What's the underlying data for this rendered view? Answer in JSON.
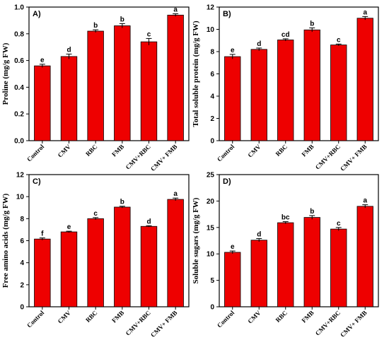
{
  "chart_data": [
    {
      "type": "bar",
      "panel_label": "A)",
      "ylabel": "Proline (mg/g FW)",
      "categories": [
        "Control",
        "CMV",
        "RBC",
        "FMB",
        "CMV+RBC",
        "CMV+ FMB"
      ],
      "values": [
        0.56,
        0.63,
        0.82,
        0.86,
        0.74,
        0.94
      ],
      "errors": [
        0.012,
        0.018,
        0.01,
        0.016,
        0.025,
        0.01
      ],
      "significance": [
        "e",
        "d",
        "b",
        "b",
        "c",
        "a"
      ],
      "ylim": [
        0.0,
        1.0
      ],
      "yticks": [
        "0.0",
        "0.2",
        "0.4",
        "0.6",
        "0.8",
        "1.0"
      ],
      "bar_color": "#ee0000"
    },
    {
      "type": "bar",
      "panel_label": "B)",
      "ylabel": "Total soluble protein (mg/g FW)",
      "categories": [
        "Control",
        "CMV",
        "RBC",
        "FMB",
        "CMV+RBC",
        "CMV+ FMB"
      ],
      "values": [
        7.55,
        8.2,
        9.05,
        9.95,
        8.6,
        11.0
      ],
      "errors": [
        0.2,
        0.12,
        0.1,
        0.18,
        0.08,
        0.15
      ],
      "significance": [
        "e",
        "d",
        "cd",
        "b",
        "c",
        "a"
      ],
      "ylim": [
        0,
        12
      ],
      "yticks": [
        "0",
        "2",
        "4",
        "6",
        "8",
        "10",
        "12"
      ],
      "bar_color": "#ee0000"
    },
    {
      "type": "bar",
      "panel_label": "C)",
      "ylabel": "Free amino acids (mg/g FW)",
      "categories": [
        "Control",
        "CMV",
        "RBC",
        "FMB",
        "CMV+RBC",
        "CMV+ FMB"
      ],
      "values": [
        6.15,
        6.8,
        8.0,
        9.05,
        7.3,
        9.75
      ],
      "errors": [
        0.1,
        0.06,
        0.1,
        0.08,
        0.06,
        0.12
      ],
      "significance": [
        "f",
        "e",
        "c",
        "b",
        "d",
        "a"
      ],
      "ylim": [
        0,
        12
      ],
      "yticks": [
        "0",
        "2",
        "4",
        "6",
        "8",
        "10",
        "12"
      ],
      "bar_color": "#ee0000"
    },
    {
      "type": "bar",
      "panel_label": "D)",
      "ylabel": "Soluble sugars (mg/g FW)",
      "categories": [
        "Control",
        "CMV",
        "RBC",
        "FMB",
        "CMV+RBC",
        "CMV+ FMB"
      ],
      "values": [
        10.3,
        12.6,
        15.9,
        16.9,
        14.7,
        19.0
      ],
      "errors": [
        0.25,
        0.3,
        0.2,
        0.35,
        0.3,
        0.3
      ],
      "significance": [
        "e",
        "d",
        "bc",
        "b",
        "c",
        "a"
      ],
      "ylim": [
        0,
        25
      ],
      "yticks": [
        "0",
        "5",
        "10",
        "15",
        "20",
        "25"
      ],
      "bar_color": "#ee0000"
    }
  ]
}
